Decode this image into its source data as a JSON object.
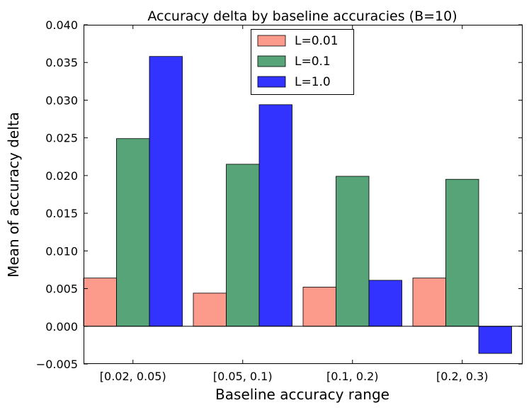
{
  "chart_data": {
    "type": "bar",
    "title": "Accuracy delta by baseline accuracies (B=10)",
    "xlabel": "Baseline accuracy range",
    "ylabel": "Mean of accuracy delta",
    "categories": [
      "[0.02, 0.05)",
      "[0.05, 0.1)",
      "[0.1, 0.2)",
      "[0.2, 0.3)"
    ],
    "series": [
      {
        "name": "L=0.01",
        "color": "#fc9a8c",
        "values": [
          0.0064,
          0.0044,
          0.0052,
          0.0064
        ]
      },
      {
        "name": "L=0.1",
        "color": "#56a477",
        "values": [
          0.0249,
          0.0215,
          0.0199,
          0.0195
        ]
      },
      {
        "name": "L=1.0",
        "color": "#3333ff",
        "values": [
          0.0358,
          0.0294,
          0.0061,
          -0.0036
        ]
      }
    ],
    "ylim": [
      -0.005,
      0.04
    ],
    "yticks": [
      -0.005,
      0.0,
      0.005,
      0.01,
      0.015,
      0.02,
      0.025,
      0.03,
      0.035,
      0.04
    ],
    "ytick_labels": [
      "−0.005",
      "0.000",
      "0.005",
      "0.010",
      "0.015",
      "0.020",
      "0.025",
      "0.030",
      "0.035",
      "0.040"
    ],
    "grid": false,
    "legend_position": "top-center"
  }
}
